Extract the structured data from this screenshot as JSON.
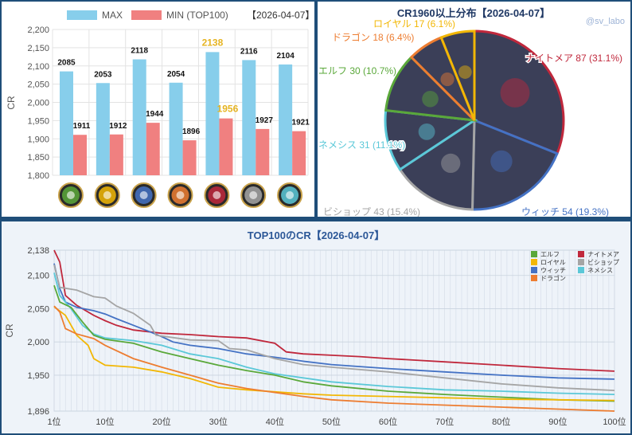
{
  "colors": {
    "max": "#87ceeb",
    "min": "#f08080",
    "highlight": "#e6b422",
    "elf": "#5aa83a",
    "royal": "#f2b705",
    "witch": "#4472c4",
    "dragon": "#ed7d31",
    "nightmare": "#c0283c",
    "bishop": "#a5a5a5",
    "nemesis": "#5bc8d8"
  },
  "chart_data": [
    {
      "type": "bar",
      "legend": [
        "MAX",
        "MIN (TOP100)"
      ],
      "date_label": "【2026-04-07】",
      "ylabel": "CR",
      "ylim": [
        1800,
        2200
      ],
      "yticks": [
        "1,800",
        "1,850",
        "1,900",
        "1,950",
        "2,000",
        "2,050",
        "2,100",
        "2,150",
        "2,200"
      ],
      "categories": [
        "elf",
        "royal",
        "witch",
        "dragon",
        "nightmare",
        "bishop",
        "nemesis"
      ],
      "category_icons": [
        "leaf-icon",
        "crown-icon",
        "magic-circle-icon",
        "dragon-icon",
        "nightmare-icon",
        "bishop-icon",
        "nemesis-icon"
      ],
      "series": [
        {
          "name": "MAX",
          "values": [
            2085,
            2053,
            2118,
            2054,
            2138,
            2116,
            2104
          ]
        },
        {
          "name": "MIN (TOP100)",
          "values": [
            1911,
            1912,
            1944,
            1896,
            1956,
            1927,
            1921
          ]
        }
      ],
      "highlight_index": 4
    },
    {
      "type": "pie",
      "title": "CR1960以上分布【2026-04-07】",
      "watermark": "@sv_labo",
      "slices": [
        {
          "key": "nightmare",
          "label": "ナイトメア 87 (31.1%)",
          "value": 87
        },
        {
          "key": "witch",
          "label": "ウィッチ 54 (19.3%)",
          "value": 54
        },
        {
          "key": "bishop",
          "label": "ビショップ 43 (15.4%)",
          "value": 43
        },
        {
          "key": "nemesis",
          "label": "ネメシス 31 (11.1%)",
          "value": 31
        },
        {
          "key": "elf",
          "label": "エルフ 30 (10.7%)",
          "value": 30
        },
        {
          "key": "dragon",
          "label": "ドラゴン 18 (6.4%)",
          "value": 18
        },
        {
          "key": "royal",
          "label": "ロイヤル 17 (6.1%)",
          "value": 17
        }
      ]
    },
    {
      "type": "line",
      "title": "TOP100のCR【2026-04-07】",
      "ylabel": "CR",
      "ylim": [
        1896,
        2138
      ],
      "yticks": [
        1896,
        1950,
        2000,
        2050,
        2100,
        2138
      ],
      "ytick_labels": [
        "1,896",
        "1,950",
        "2,000",
        "2,050",
        "2,100",
        "2,138"
      ],
      "xlim": [
        1,
        100
      ],
      "xticks": [
        1,
        10,
        20,
        30,
        40,
        50,
        60,
        70,
        80,
        90,
        100
      ],
      "xtick_labels": [
        "1位",
        "10位",
        "20位",
        "30位",
        "40位",
        "50位",
        "60位",
        "70位",
        "80位",
        "90位",
        "100位"
      ],
      "legend_left": [
        {
          "key": "elf",
          "label": "エルフ"
        },
        {
          "key": "royal",
          "label": "ロイヤル"
        },
        {
          "key": "witch",
          "label": "ウィッチ"
        },
        {
          "key": "dragon",
          "label": "ドラゴン"
        }
      ],
      "legend_right": [
        {
          "key": "nightmare",
          "label": "ナイトメア"
        },
        {
          "key": "bishop",
          "label": "ビショップ"
        },
        {
          "key": "nemesis",
          "label": "ネメシス"
        }
      ],
      "series": [
        {
          "key": "nightmare",
          "points": [
            [
              1,
              2138
            ],
            [
              2,
              2120
            ],
            [
              3,
              2070
            ],
            [
              5,
              2055
            ],
            [
              8,
              2040
            ],
            [
              10,
              2032
            ],
            [
              12,
              2025
            ],
            [
              15,
              2018
            ],
            [
              20,
              2013
            ],
            [
              25,
              2011
            ],
            [
              30,
              2008
            ],
            [
              35,
              2006
            ],
            [
              40,
              1998
            ],
            [
              42,
              1985
            ],
            [
              45,
              1982
            ],
            [
              50,
              1980
            ],
            [
              55,
              1978
            ],
            [
              60,
              1975
            ],
            [
              70,
              1970
            ],
            [
              80,
              1965
            ],
            [
              90,
              1960
            ],
            [
              100,
              1956
            ]
          ]
        },
        {
          "key": "witch",
          "points": [
            [
              1,
              2118
            ],
            [
              2,
              2080
            ],
            [
              3,
              2060
            ],
            [
              5,
              2052
            ],
            [
              8,
              2047
            ],
            [
              10,
              2042
            ],
            [
              12,
              2035
            ],
            [
              15,
              2025
            ],
            [
              18,
              2015
            ],
            [
              20,
              2008
            ],
            [
              22,
              2000
            ],
            [
              25,
              1995
            ],
            [
              30,
              1990
            ],
            [
              35,
              1982
            ],
            [
              40,
              1977
            ],
            [
              45,
              1971
            ],
            [
              50,
              1966
            ],
            [
              60,
              1960
            ],
            [
              70,
              1955
            ],
            [
              80,
              1950
            ],
            [
              90,
              1946
            ],
            [
              100,
              1944
            ]
          ]
        },
        {
          "key": "bishop",
          "points": [
            [
              1,
              2116
            ],
            [
              2,
              2082
            ],
            [
              5,
              2078
            ],
            [
              8,
              2068
            ],
            [
              10,
              2066
            ],
            [
              12,
              2054
            ],
            [
              15,
              2043
            ],
            [
              18,
              2025
            ],
            [
              19,
              2010
            ],
            [
              25,
              2003
            ],
            [
              30,
              2002
            ],
            [
              32,
              1990
            ],
            [
              35,
              1988
            ],
            [
              40,
              1975
            ],
            [
              45,
              1966
            ],
            [
              50,
              1962
            ],
            [
              60,
              1955
            ],
            [
              70,
              1946
            ],
            [
              80,
              1937
            ],
            [
              90,
              1931
            ],
            [
              100,
              1927
            ]
          ]
        },
        {
          "key": "nemesis",
          "points": [
            [
              1,
              2104
            ],
            [
              2,
              2070
            ],
            [
              4,
              2050
            ],
            [
              6,
              2025
            ],
            [
              8,
              2012
            ],
            [
              10,
              2006
            ],
            [
              15,
              2002
            ],
            [
              20,
              1995
            ],
            [
              25,
              1982
            ],
            [
              30,
              1975
            ],
            [
              35,
              1962
            ],
            [
              40,
              1952
            ],
            [
              45,
              1946
            ],
            [
              50,
              1940
            ],
            [
              60,
              1933
            ],
            [
              70,
              1928
            ],
            [
              80,
              1926
            ],
            [
              90,
              1923
            ],
            [
              100,
              1921
            ]
          ]
        },
        {
          "key": "elf",
          "points": [
            [
              1,
              2085
            ],
            [
              2,
              2060
            ],
            [
              4,
              2052
            ],
            [
              6,
              2030
            ],
            [
              8,
              2010
            ],
            [
              10,
              2004
            ],
            [
              15,
              1998
            ],
            [
              20,
              1985
            ],
            [
              25,
              1975
            ],
            [
              30,
              1965
            ],
            [
              35,
              1957
            ],
            [
              40,
              1950
            ],
            [
              45,
              1940
            ],
            [
              50,
              1934
            ],
            [
              60,
              1926
            ],
            [
              70,
              1921
            ],
            [
              80,
              1917
            ],
            [
              90,
              1913
            ],
            [
              100,
              1911
            ]
          ]
        },
        {
          "key": "royal",
          "points": [
            [
              1,
              2053
            ],
            [
              3,
              2040
            ],
            [
              5,
              2010
            ],
            [
              7,
              1995
            ],
            [
              8,
              1975
            ],
            [
              10,
              1965
            ],
            [
              15,
              1962
            ],
            [
              20,
              1955
            ],
            [
              25,
              1945
            ],
            [
              30,
              1932
            ],
            [
              35,
              1928
            ],
            [
              40,
              1925
            ],
            [
              45,
              1922
            ],
            [
              50,
              1920
            ],
            [
              60,
              1918
            ],
            [
              70,
              1916
            ],
            [
              80,
              1914
            ],
            [
              90,
              1913
            ],
            [
              100,
              1912
            ]
          ]
        },
        {
          "key": "dragon",
          "points": [
            [
              1,
              2054
            ],
            [
              2,
              2045
            ],
            [
              3,
              2020
            ],
            [
              5,
              2012
            ],
            [
              8,
              2005
            ],
            [
              10,
              1995
            ],
            [
              15,
              1975
            ],
            [
              20,
              1962
            ],
            [
              25,
              1950
            ],
            [
              30,
              1938
            ],
            [
              35,
              1930
            ],
            [
              40,
              1924
            ],
            [
              45,
              1918
            ],
            [
              50,
              1913
            ],
            [
              60,
              1908
            ],
            [
              70,
              1905
            ],
            [
              80,
              1902
            ],
            [
              90,
              1899
            ],
            [
              100,
              1896
            ]
          ]
        }
      ]
    }
  ]
}
